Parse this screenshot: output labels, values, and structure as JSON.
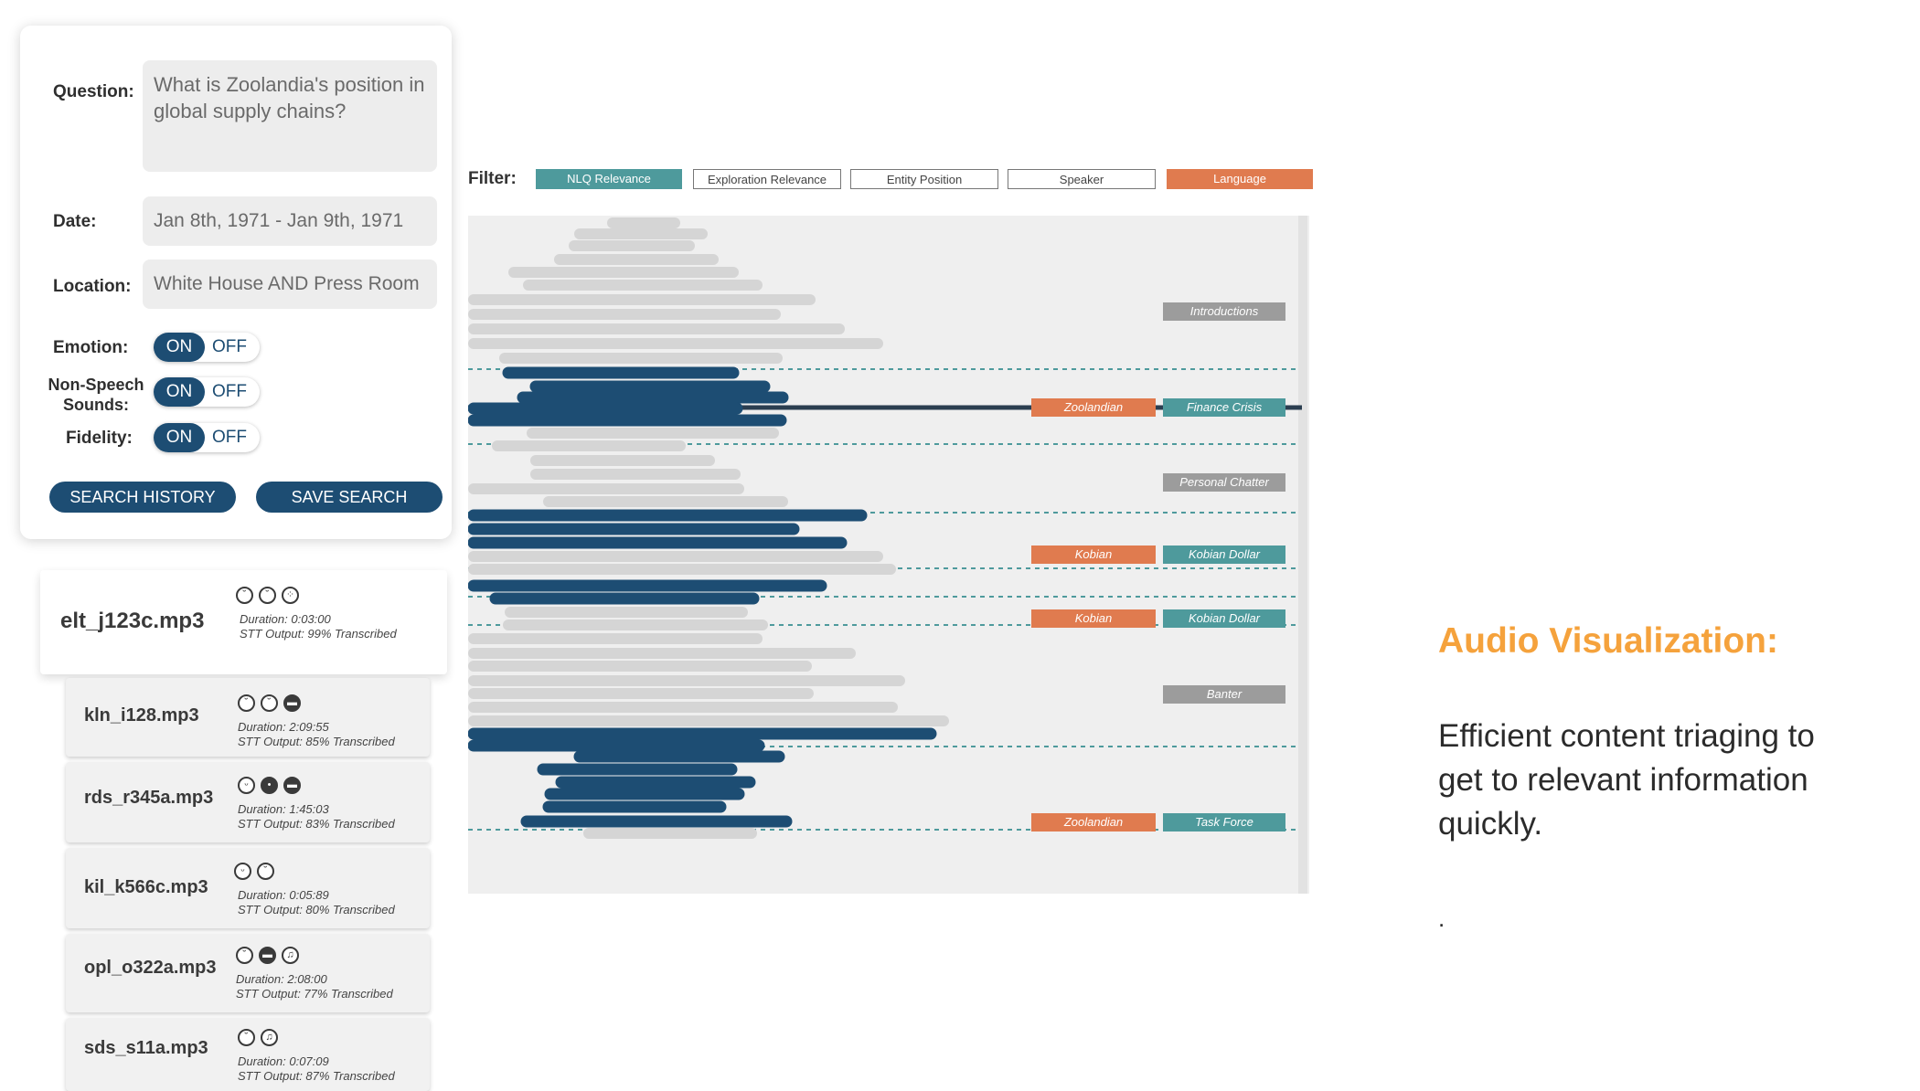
{
  "search": {
    "question_label": "Question:",
    "question_value": "What is Zoolandia's position in global supply chains?",
    "date_label": "Date:",
    "date_value": "Jan 8th, 1971 - Jan 9th, 1971",
    "location_label": "Location:",
    "location_value": "White House AND Press Room",
    "toggles": [
      {
        "label": "Emotion:",
        "on": "ON",
        "off": "OFF"
      },
      {
        "label": "Non-Speech Sounds:",
        "on": "ON",
        "off": "OFF"
      },
      {
        "label": "Fidelity:",
        "on": "ON",
        "off": "OFF"
      }
    ],
    "history_button": "SEARCH HISTORY",
    "save_button": "SAVE SEARCH"
  },
  "files": [
    {
      "name": "elt_j123c.mp3",
      "duration": "Duration: 0:03:00",
      "stt": "STT Output: 99% Transcribed",
      "icons": [
        "neutral-face-icon",
        "worried-face-icon",
        "crowd-icon"
      ]
    },
    {
      "name": "kln_i128.mp3",
      "duration": "Duration: 2:09:55",
      "stt": "STT Output: 85% Transcribed",
      "icons": [
        "neutral-face-icon",
        "worried-face-icon",
        "car-icon"
      ]
    },
    {
      "name": "rds_r345a.mp3",
      "duration": "Duration: 1:45:03",
      "stt": "STT Output: 83% Transcribed",
      "icons": [
        "happy-face-icon",
        "paw-icon",
        "car-icon"
      ]
    },
    {
      "name": "kil_k566c.mp3",
      "duration": "Duration: 0:05:89",
      "stt": "STT Output: 80% Transcribed",
      "icons": [
        "happy-face-icon",
        "neutral-face-icon"
      ]
    },
    {
      "name": "opl_o322a.mp3",
      "duration": "Duration: 2:08:00",
      "stt": "STT Output: 77% Transcribed",
      "icons": [
        "neutral-face-icon",
        "car-icon",
        "music-icon"
      ]
    },
    {
      "name": "sds_s11a.mp3",
      "duration": "Duration: 0:07:09",
      "stt": "STT Output: 87% Transcribed",
      "icons": [
        "neutral-face-icon",
        "music-icon"
      ]
    }
  ],
  "filter": {
    "label": "Filter:",
    "buttons": [
      {
        "label": "NLQ Relevance",
        "style": "teal"
      },
      {
        "label": "Exploration Relevance",
        "style": "outline"
      },
      {
        "label": "Entity Position",
        "style": "outline"
      },
      {
        "label": "Speaker",
        "style": "outline"
      },
      {
        "label": "Language",
        "style": "orange"
      }
    ]
  },
  "colors": {
    "navy": "#1d4d73",
    "teal": "#4e9a9c",
    "orange": "#e07b4f",
    "grey_bar": "#d5d5d5",
    "tag_grey": "#9c9c9c",
    "heading": "#f5a23c"
  },
  "viz": {
    "tags": [
      {
        "label": "Introductions",
        "color": "grey"
      },
      {
        "label": "Zoolandian",
        "color": "orange"
      },
      {
        "label": "Finance Crisis",
        "color": "teal"
      },
      {
        "label": "Personal Chatter",
        "color": "grey"
      },
      {
        "label": "Kobian",
        "color": "orange"
      },
      {
        "label": "Kobian Dollar",
        "color": "teal"
      },
      {
        "label": "Kobian",
        "color": "orange"
      },
      {
        "label": "Kobian Dollar",
        "color": "teal"
      },
      {
        "label": "Banter",
        "color": "grey"
      },
      {
        "label": "Zoolandian",
        "color": "orange"
      },
      {
        "label": "Task Force",
        "color": "teal"
      }
    ]
  },
  "panel": {
    "heading": "Audio Visualization:",
    "body": "Efficient content triaging to get to relevant information quickly.",
    "dot": "."
  }
}
